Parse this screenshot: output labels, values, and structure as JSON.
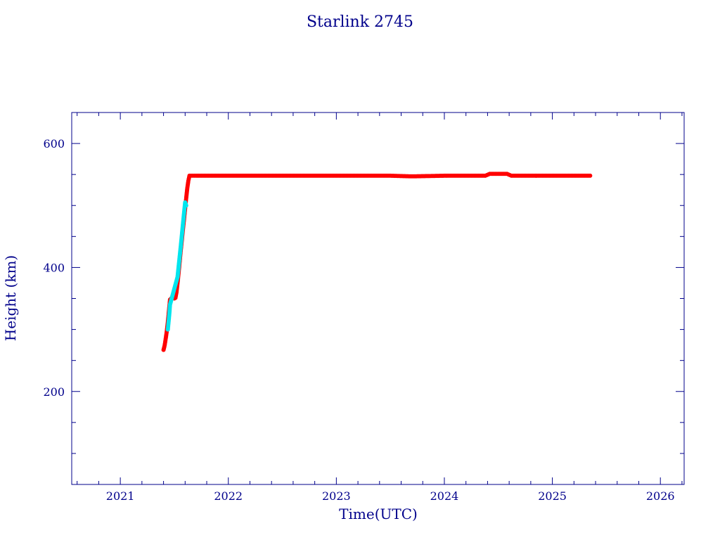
{
  "chart_data": {
    "type": "scatter",
    "title": "Starlink 2745",
    "xlabel": "Time(UTC)",
    "ylabel": "Height (km)",
    "xlim": [
      2020.55,
      2026.22
    ],
    "ylim": [
      50,
      650
    ],
    "x_ticks": [
      2021,
      2022,
      2023,
      2024,
      2025,
      2026
    ],
    "y_ticks": [
      200,
      400,
      600
    ],
    "grid": false,
    "legend": "none",
    "colors": {
      "axis": "#00008b",
      "primary": "#ff0000",
      "secondary": "#00e5ee"
    },
    "series": [
      {
        "color": "#ff0000",
        "points": [
          [
            2021.4,
            267
          ],
          [
            2021.41,
            274
          ],
          [
            2021.42,
            285
          ],
          [
            2021.43,
            297
          ],
          [
            2021.44,
            312
          ],
          [
            2021.45,
            330
          ],
          [
            2021.46,
            348
          ],
          [
            2021.47,
            350
          ],
          [
            2021.48,
            350
          ],
          [
            2021.5,
            350
          ],
          [
            2021.51,
            351
          ],
          [
            2021.52,
            360
          ],
          [
            2021.53,
            375
          ],
          [
            2021.54,
            392
          ],
          [
            2021.55,
            410
          ],
          [
            2021.56,
            428
          ],
          [
            2021.57,
            445
          ],
          [
            2021.58,
            462
          ],
          [
            2021.59,
            478
          ],
          [
            2021.6,
            495
          ],
          [
            2021.61,
            512
          ],
          [
            2021.62,
            528
          ],
          [
            2021.63,
            540
          ],
          [
            2021.64,
            548
          ],
          [
            2021.7,
            548
          ],
          [
            2022.0,
            548
          ],
          [
            2022.5,
            548
          ],
          [
            2023.0,
            548
          ],
          [
            2023.5,
            548
          ],
          [
            2023.7,
            547
          ],
          [
            2024.0,
            548
          ],
          [
            2024.38,
            548
          ],
          [
            2024.42,
            551
          ],
          [
            2024.5,
            551
          ],
          [
            2024.58,
            551
          ],
          [
            2024.62,
            548
          ],
          [
            2025.0,
            548
          ],
          [
            2025.35,
            548
          ]
        ]
      },
      {
        "color": "#00e5ee",
        "points": [
          [
            2021.44,
            300
          ],
          [
            2021.45,
            318
          ],
          [
            2021.455,
            328
          ],
          [
            2021.46,
            340
          ],
          [
            2021.53,
            385
          ],
          [
            2021.56,
            435
          ],
          [
            2021.59,
            488
          ],
          [
            2021.6,
            505
          ],
          [
            2021.61,
            500
          ]
        ]
      }
    ]
  }
}
